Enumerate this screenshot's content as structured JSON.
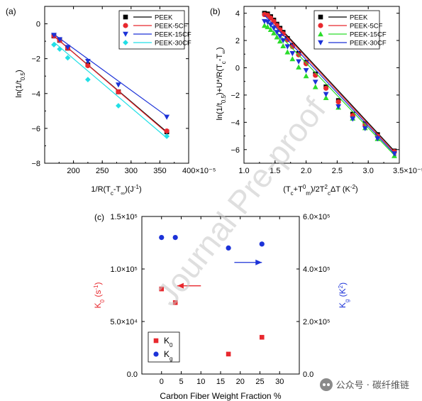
{
  "watermark": "Journal Pre-proof",
  "source_tag": "公众号 · 碳纤维链",
  "chart_data": [
    {
      "id": "a",
      "panel_label": "(a)",
      "type": "scatter",
      "xlabel_parts": {
        "main": "1/R(T",
        "sub1": "c",
        "mid": "-T",
        "sub2": "∞",
        "end": ")(J",
        "sup": "-1",
        "tail": ")"
      },
      "ylabel_parts": {
        "main": "ln(1/t",
        "sub": "0.5",
        "end": ")"
      },
      "xlim": [
        150,
        400
      ],
      "ylim": [
        -8,
        1
      ],
      "x_ticks": [
        150,
        200,
        250,
        300,
        350,
        400
      ],
      "x_tick_labels": [
        "",
        "200",
        "250",
        "300",
        "350",
        "400×10⁻⁵"
      ],
      "y_ticks": [
        -8,
        -6,
        -4,
        -2,
        0
      ],
      "y_tick_labels": [
        "−8",
        "−6",
        "−4",
        "−2",
        "0"
      ],
      "legend_position": "top-right",
      "series": [
        {
          "name": "PEEK",
          "color": "#000000",
          "marker": "square",
          "x": [
            166,
            176,
            190,
            225,
            278,
            362
          ],
          "y": [
            -0.7,
            -0.95,
            -1.4,
            -2.35,
            -3.9,
            -6.2
          ],
          "fit": {
            "x": [
              166,
              362
            ],
            "y": [
              -0.7,
              -6.2
            ]
          }
        },
        {
          "name": "PEEK-5CF",
          "color": "#e8282e",
          "marker": "circle",
          "x": [
            166,
            176,
            190,
            225,
            278,
            362
          ],
          "y": [
            -0.7,
            -0.95,
            -1.4,
            -2.4,
            -3.9,
            -6.15
          ],
          "fit": {
            "x": [
              166,
              362
            ],
            "y": [
              -0.7,
              -6.25
            ]
          }
        },
        {
          "name": "PEEK-15CF",
          "color": "#1c32d8",
          "marker": "triangle-down",
          "x": [
            166,
            176,
            190,
            225,
            278,
            362
          ],
          "y": [
            -0.65,
            -0.9,
            -1.35,
            -2.15,
            -3.5,
            -5.35
          ],
          "fit": {
            "x": [
              166,
              362
            ],
            "y": [
              -0.6,
              -5.3
            ]
          }
        },
        {
          "name": "PEEK-30CF",
          "color": "#22dfe6",
          "marker": "diamond",
          "x": [
            166,
            176,
            190,
            225,
            278,
            362
          ],
          "y": [
            -1.2,
            -1.45,
            -1.95,
            -3.2,
            -4.7,
            -6.45
          ],
          "fit": {
            "x": [
              166,
              362
            ],
            "y": [
              -1.05,
              -6.55
            ]
          }
        }
      ]
    },
    {
      "id": "b",
      "panel_label": "(b)",
      "type": "scatter",
      "xlabel_parts": {
        "a": "(T",
        "asub": "c",
        "b": "+T",
        "bsup": "0",
        "bsub": "m",
        "c": ")/2T",
        "csup": "2",
        "csub": "c",
        "d": "ΔT (K",
        "dsup": "-2",
        "e": ")"
      },
      "ylabel_parts": {
        "a": "ln(1/t",
        "asub": "0.5",
        "b": ")+U*/R(T",
        "bsub": "c",
        "c": "-T",
        "csub": "∞",
        "d": ")"
      },
      "xlim": [
        1.0,
        3.5
      ],
      "ylim": [
        -7,
        4.5
      ],
      "x_ticks": [
        1.0,
        1.5,
        2.0,
        2.5,
        3.0,
        3.5
      ],
      "x_tick_labels": [
        "1.0",
        "1.5",
        "2.0",
        "2.5",
        "3.0",
        "3.5×10⁻⁵"
      ],
      "y_ticks": [
        -6,
        -4,
        -2,
        0,
        2,
        4
      ],
      "y_tick_labels": [
        "−6",
        "−4",
        "−2",
        "0",
        "2",
        "4"
      ],
      "legend_position": "top-right",
      "series": [
        {
          "name": "PEEK",
          "color": "#000000",
          "marker": "square",
          "x": [
            1.33,
            1.38,
            1.43,
            1.48,
            1.53,
            1.58,
            1.63,
            1.7,
            1.78,
            1.88,
            2.0,
            2.15,
            2.32,
            2.52,
            2.75,
            2.95,
            3.15,
            3.42
          ],
          "y": [
            4.0,
            3.95,
            3.75,
            3.5,
            3.2,
            2.9,
            2.6,
            2.15,
            1.65,
            1.05,
            0.4,
            -0.45,
            -1.4,
            -2.4,
            -3.4,
            -4.1,
            -4.9,
            -6.1
          ],
          "fit": {
            "x": [
              1.33,
              3.45
            ],
            "y": [
              4.15,
              -6.25
            ]
          }
        },
        {
          "name": "PEEK-5CF",
          "color": "#e8282e",
          "marker": "circle",
          "x": [
            1.33,
            1.38,
            1.43,
            1.48,
            1.53,
            1.58,
            1.63,
            1.7,
            1.78,
            1.88,
            2.0,
            2.15,
            2.32,
            2.52,
            2.75,
            2.95,
            3.15,
            3.42
          ],
          "y": [
            3.9,
            3.85,
            3.65,
            3.4,
            3.1,
            2.8,
            2.5,
            2.05,
            1.55,
            0.95,
            0.3,
            -0.55,
            -1.5,
            -2.5,
            -3.5,
            -4.2,
            -5.0,
            -6.15
          ],
          "fit": {
            "x": [
              1.33,
              3.45
            ],
            "y": [
              4.05,
              -6.35
            ]
          }
        },
        {
          "name": "PEEK-15CF",
          "color": "#2adc2a",
          "marker": "triangle-up",
          "x": [
            1.33,
            1.38,
            1.43,
            1.48,
            1.53,
            1.58,
            1.63,
            1.7,
            1.78,
            1.88,
            2.0,
            2.15,
            2.32,
            2.52,
            2.75,
            2.95,
            3.15,
            3.42
          ],
          "y": [
            3.1,
            3.0,
            2.8,
            2.55,
            2.25,
            1.95,
            1.6,
            1.15,
            0.65,
            0.05,
            -0.6,
            -1.4,
            -2.2,
            -2.9,
            -3.7,
            -4.4,
            -5.2,
            -6.45
          ],
          "fit": {
            "x": [
              1.33,
              3.45
            ],
            "y": [
              3.55,
              -6.55
            ]
          }
        },
        {
          "name": "PEEK-30CF",
          "color": "#1c32d8",
          "marker": "triangle-down",
          "x": [
            1.33,
            1.38,
            1.43,
            1.48,
            1.53,
            1.58,
            1.63,
            1.7,
            1.78,
            1.88,
            2.0,
            2.15,
            2.32,
            2.52,
            2.75,
            2.95,
            3.15,
            3.42
          ],
          "y": [
            3.4,
            3.35,
            3.15,
            2.9,
            2.6,
            2.3,
            2.0,
            1.55,
            1.05,
            0.45,
            -0.2,
            -1.05,
            -1.95,
            -2.85,
            -3.75,
            -4.45,
            -5.2,
            -6.3
          ],
          "fit": {
            "x": [
              1.33,
              3.45
            ],
            "y": [
              3.85,
              -6.45
            ]
          }
        }
      ]
    },
    {
      "id": "c",
      "panel_label": "(c)",
      "type": "scatter",
      "xlabel": "Carbon Fiber Weight Fraction %",
      "xlim": [
        -5,
        35
      ],
      "x_ticks": [
        0,
        5,
        10,
        15,
        20,
        25,
        30
      ],
      "x_tick_labels": [
        "0",
        "5",
        "10",
        "15",
        "20",
        "25",
        "30"
      ],
      "left_axis": {
        "label_parts": {
          "a": "K",
          "asub": "0",
          "b": " (s",
          "bsup": "-1",
          "c": ")"
        },
        "color": "#e8282e",
        "ylim": [
          0,
          150000
        ],
        "ticks": [
          0,
          50000,
          100000,
          150000
        ],
        "tick_labels": [
          "0.0",
          "5.0×10⁴",
          "1.0×10⁵",
          "1.5×10⁵"
        ]
      },
      "right_axis": {
        "label_parts": {
          "a": "K",
          "asub": "g",
          "b": " (K",
          "bsup": "2",
          "c": ")"
        },
        "color": "#1c32d8",
        "ylim": [
          0,
          600000
        ],
        "ticks": [
          0,
          200000,
          400000,
          600000
        ],
        "tick_labels": [
          "0.0",
          "2.0×10⁵",
          "4.0×10⁵",
          "6.0×10⁵"
        ]
      },
      "legend_position": "bottom-left",
      "series": [
        {
          "name": "K0",
          "legend_main": "K",
          "legend_sub": "0",
          "color": "#e8282e",
          "marker": "square",
          "axis": "left",
          "x": [
            0,
            3.5,
            17,
            25.5
          ],
          "y": [
            81000,
            68000,
            19000,
            35000
          ]
        },
        {
          "name": "Kg",
          "legend_main": "K",
          "legend_sub": "g",
          "color": "#1c32d8",
          "marker": "circle",
          "axis": "right",
          "x": [
            0,
            3.5,
            17,
            25.5
          ],
          "y": [
            520000,
            520000,
            480000,
            495000
          ]
        }
      ],
      "arrows": [
        {
          "color": "#e8282e",
          "direction": "left",
          "x": [
            10,
            4
          ],
          "y_left": 84000
        },
        {
          "color": "#1c32d8",
          "direction": "right",
          "x": [
            18.5,
            25.5
          ],
          "y_right": 425000
        }
      ]
    }
  ]
}
